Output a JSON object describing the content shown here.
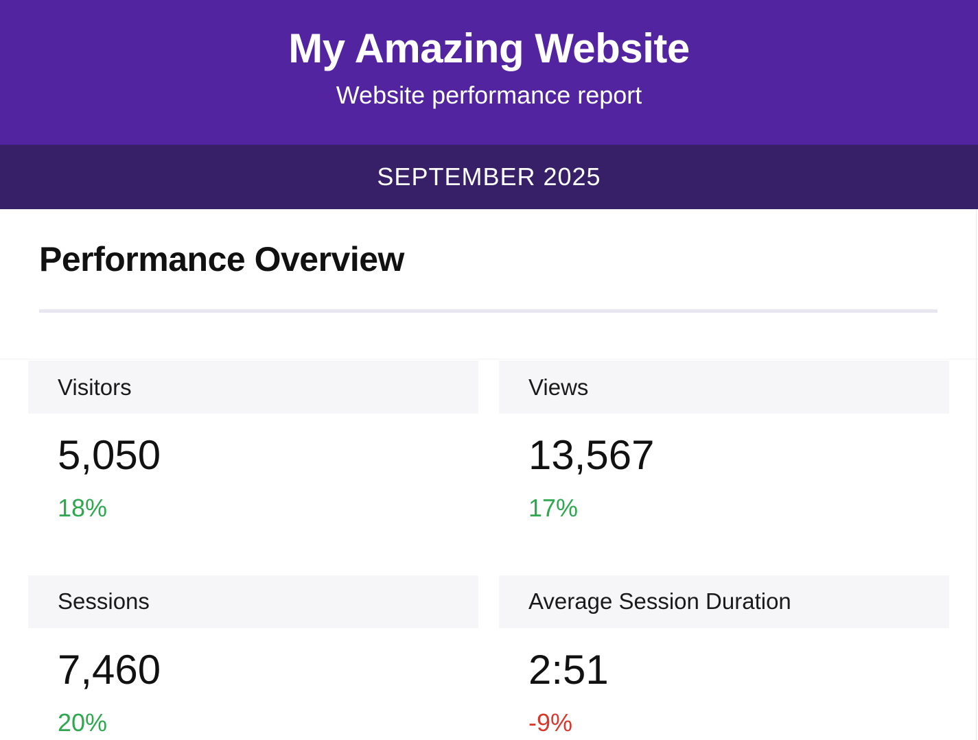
{
  "header": {
    "title": "My Amazing Website",
    "subtitle": "Website performance report",
    "period": "SEPTEMBER 2025"
  },
  "section": {
    "title": "Performance Overview"
  },
  "metrics": [
    {
      "label": "Visitors",
      "value": "5,050",
      "change": "18%",
      "direction": "up"
    },
    {
      "label": "Views",
      "value": "13,567",
      "change": "17%",
      "direction": "up"
    },
    {
      "label": "Sessions",
      "value": "7,460",
      "change": "20%",
      "direction": "up"
    },
    {
      "label": "Average Session Duration",
      "value": "2:51",
      "change": "-9%",
      "direction": "down"
    }
  ],
  "colors": {
    "hero_bg": "#5224A0",
    "band_bg": "#382069",
    "card_header_bg": "#f6f5f8",
    "positive": "#2ea84f",
    "negative": "#d6382c",
    "divider": "#e8e6f0",
    "text": "#111111"
  }
}
